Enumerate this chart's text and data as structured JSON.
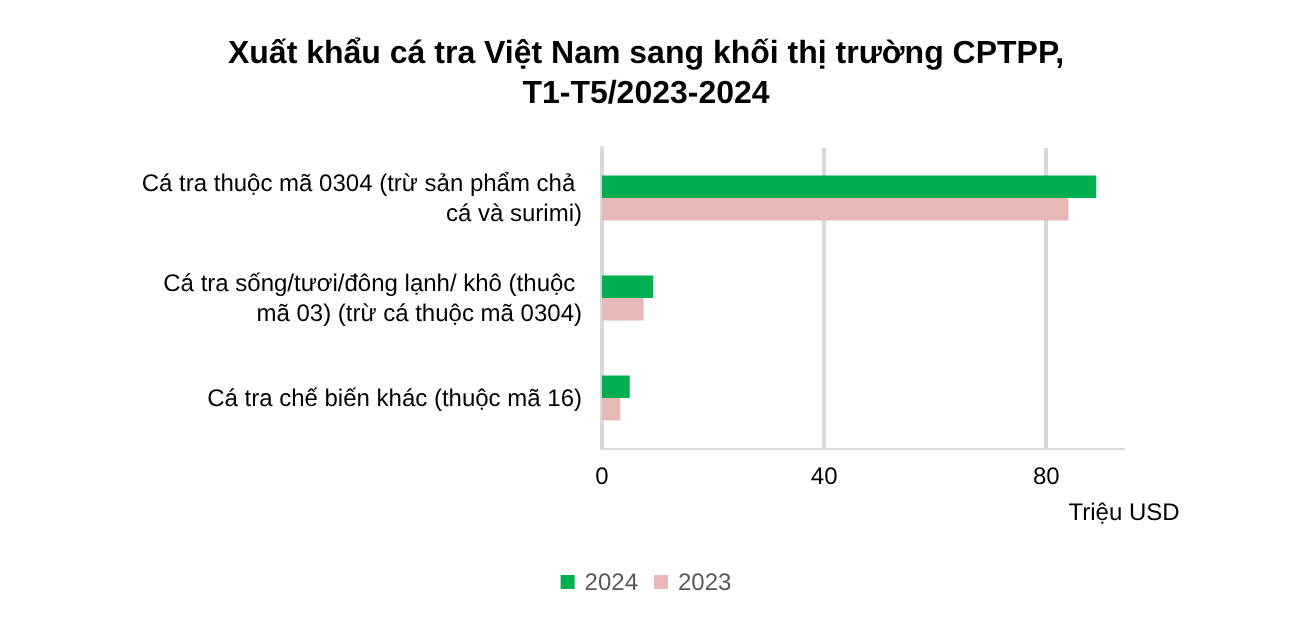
{
  "chart_data": {
    "type": "bar",
    "orientation": "horizontal",
    "title": "Xuất khẩu cá tra Việt Nam sang khối thị trường CPTPP,\nT1-T5/2023-2024",
    "xlabel": "Triệu USD",
    "categories": [
      "Cá tra thuộc mã 0304 (trừ sản phẩm chả cá và surimi)",
      "Cá tra sống/tươi/đông lạnh/ khô (thuộc mã 03) (trừ cá thuộc mã 0304)",
      "Cá tra chế biến khác (thuộc mã 16)"
    ],
    "series": [
      {
        "name": "2024",
        "color": "#00b050",
        "values": [
          89,
          9.2,
          5
        ]
      },
      {
        "name": "2023",
        "color": "#e6b8b7",
        "values": [
          84,
          7.5,
          3.3
        ]
      }
    ],
    "xlim": [
      0,
      94
    ],
    "xticks": [
      0,
      40,
      80
    ],
    "grid": "x",
    "legend": "bottom"
  }
}
